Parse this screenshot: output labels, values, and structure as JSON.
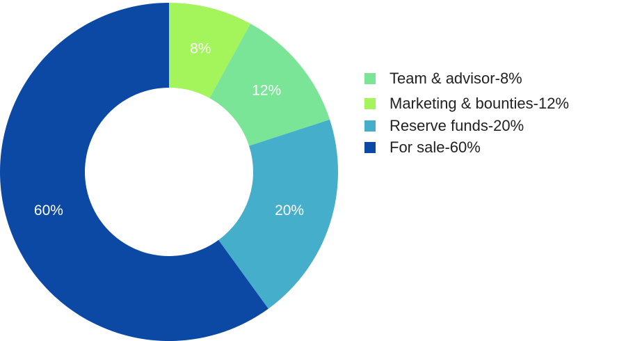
{
  "chart_data": {
    "type": "donut",
    "categories": [
      "Team & advisor-8%",
      "Marketing & bounties-12%",
      "Reserve funds-20%",
      "For sale-60%"
    ],
    "values": [
      8,
      12,
      20,
      60
    ],
    "value_labels": [
      "8%",
      "12%",
      "20%",
      "60%"
    ],
    "colors": [
      "#a4f55c",
      "#7ae596",
      "#45afcb",
      "#0b49a5"
    ],
    "legend_colors": [
      "#7ae596",
      "#a4f55c",
      "#45afcb",
      "#0b49a5"
    ],
    "legend": "right"
  }
}
